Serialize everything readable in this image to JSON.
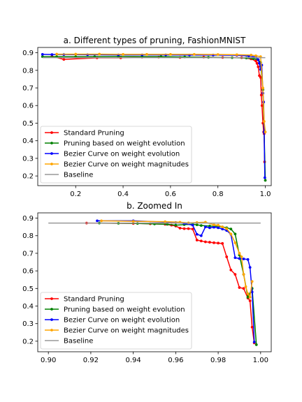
{
  "chart_data": [
    {
      "type": "line",
      "title": "a. Different types of pruning, FashionMNIST",
      "xlabel": "",
      "ylabel": "",
      "xlim": [
        0.04,
        1.025
      ],
      "ylim": [
        0.145,
        0.93
      ],
      "xticks": [
        0.2,
        0.4,
        0.6,
        0.8,
        1.0
      ],
      "xtick_labels": [
        "0.2",
        "0.4",
        "0.6",
        "0.8",
        "1.0"
      ],
      "yticks": [
        0.2,
        0.3,
        0.4,
        0.5,
        0.6,
        0.7,
        0.8,
        0.9
      ],
      "ytick_labels": [
        "0.2",
        "0.3",
        "0.4",
        "0.5",
        "0.6",
        "0.7",
        "0.8",
        "0.9"
      ],
      "legend_position": "lower-left",
      "grid": false,
      "series": [
        {
          "name": "Standard Pruning",
          "color": "#ff0000",
          "x": [
            0.1,
            0.15,
            0.29,
            0.39,
            0.48,
            0.55,
            0.64,
            0.74,
            0.82,
            0.9,
            0.94,
            0.96,
            0.965,
            0.97,
            0.975,
            0.98,
            0.983,
            0.986,
            0.99,
            0.993,
            0.995,
            0.997
          ],
          "y": [
            0.88,
            0.862,
            0.871,
            0.871,
            0.875,
            0.875,
            0.873,
            0.875,
            0.873,
            0.872,
            0.865,
            0.853,
            0.84,
            0.82,
            0.77,
            0.76,
            0.66,
            0.6,
            0.5,
            0.45,
            0.44,
            0.28
          ]
        },
        {
          "name": "Pruning based on weight evolution",
          "color": "#008000",
          "x": [
            0.06,
            0.12,
            0.2,
            0.28,
            0.38,
            0.48,
            0.56,
            0.66,
            0.76,
            0.86,
            0.92,
            0.95,
            0.97,
            0.98,
            0.99,
            0.995,
            1.0
          ],
          "y": [
            0.878,
            0.878,
            0.878,
            0.878,
            0.879,
            0.878,
            0.878,
            0.876,
            0.874,
            0.872,
            0.87,
            0.866,
            0.86,
            0.845,
            0.69,
            0.45,
            0.175
          ]
        },
        {
          "name": "Bezier Curve on weight evolution",
          "color": "#0000ff",
          "x": [
            0.06,
            0.1,
            0.15,
            0.25,
            0.38,
            0.48,
            0.58,
            0.68,
            0.78,
            0.88,
            0.93,
            0.96,
            0.97,
            0.975,
            0.98,
            0.985,
            0.99,
            0.993,
            0.995,
            0.998
          ],
          "y": [
            0.891,
            0.89,
            0.89,
            0.889,
            0.888,
            0.888,
            0.888,
            0.887,
            0.887,
            0.886,
            0.882,
            0.875,
            0.86,
            0.84,
            0.805,
            0.83,
            0.67,
            0.62,
            0.45,
            0.19
          ]
        },
        {
          "name": "Bezier Curve on weight magnitudes",
          "color": "#ffa500",
          "x": [
            0.12,
            0.2,
            0.3,
            0.4,
            0.5,
            0.6,
            0.7,
            0.8,
            0.88,
            0.94,
            0.96,
            0.98,
            0.99,
            0.995,
            1.0
          ],
          "y": [
            0.892,
            0.892,
            0.892,
            0.891,
            0.891,
            0.891,
            0.891,
            0.89,
            0.889,
            0.887,
            0.883,
            0.878,
            0.7,
            0.51,
            0.45
          ]
        },
        {
          "name": "Baseline",
          "color": "#999999",
          "style": "line-only",
          "x": [
            0.06,
            1.0
          ],
          "y": [
            0.872,
            0.872
          ]
        }
      ]
    },
    {
      "type": "line",
      "title": "b. Zoomed In",
      "xlabel": "",
      "ylabel": "",
      "xlim": [
        0.895,
        1.005
      ],
      "ylim": [
        0.14,
        0.93
      ],
      "xticks": [
        0.9,
        0.92,
        0.94,
        0.96,
        0.98,
        1.0
      ],
      "xtick_labels": [
        "0.90",
        "0.92",
        "0.94",
        "0.96",
        "0.98",
        "1.00"
      ],
      "yticks": [
        0.2,
        0.3,
        0.4,
        0.5,
        0.6,
        0.7,
        0.8,
        0.9
      ],
      "ytick_labels": [
        "0.2",
        "0.3",
        "0.4",
        "0.5",
        "0.6",
        "0.7",
        "0.8",
        "0.9"
      ],
      "legend_position": "lower-left",
      "grid": false,
      "series": [
        {
          "name": "Standard Pruning",
          "color": "#ff0000",
          "x": [
            0.918,
            0.94,
            0.948,
            0.955,
            0.958,
            0.96,
            0.962,
            0.964,
            0.966,
            0.968,
            0.97,
            0.972,
            0.974,
            0.976,
            0.978,
            0.98,
            0.982,
            0.984,
            0.986,
            0.988,
            0.99,
            0.992,
            0.994,
            0.995,
            0.996,
            0.997
          ],
          "y": [
            0.872,
            0.87,
            0.868,
            0.865,
            0.86,
            0.855,
            0.843,
            0.84,
            0.84,
            0.838,
            0.775,
            0.77,
            0.765,
            0.763,
            0.76,
            0.758,
            0.756,
            0.68,
            0.605,
            0.58,
            0.505,
            0.5,
            0.445,
            0.43,
            0.28,
            0.19
          ]
        },
        {
          "name": "Pruning based on weight evolution",
          "color": "#008000",
          "x": [
            0.924,
            0.933,
            0.942,
            0.95,
            0.956,
            0.96,
            0.964,
            0.968,
            0.97,
            0.972,
            0.976,
            0.98,
            0.982,
            0.984,
            0.986,
            0.988,
            0.99,
            0.992,
            0.994,
            0.996,
            0.998
          ],
          "y": [
            0.872,
            0.871,
            0.87,
            0.867,
            0.865,
            0.86,
            0.863,
            0.865,
            0.862,
            0.858,
            0.855,
            0.853,
            0.85,
            0.845,
            0.838,
            0.81,
            0.69,
            0.58,
            0.45,
            0.5,
            0.18
          ]
        },
        {
          "name": "Bezier Curve on weight evolution",
          "color": "#0000ff",
          "x": [
            0.923,
            0.94,
            0.96,
            0.964,
            0.968,
            0.97,
            0.972,
            0.974,
            0.976,
            0.978,
            0.98,
            0.982,
            0.984,
            0.986,
            0.988,
            0.99,
            0.992,
            0.994,
            0.995,
            0.996,
            0.997
          ],
          "y": [
            0.885,
            0.885,
            0.875,
            0.87,
            0.86,
            0.808,
            0.8,
            0.85,
            0.845,
            0.848,
            0.845,
            0.838,
            0.83,
            0.808,
            0.675,
            0.67,
            0.668,
            0.665,
            0.62,
            0.48,
            0.195
          ]
        },
        {
          "name": "Bezier Curve on weight magnitudes",
          "color": "#ffa500",
          "x": [
            0.925,
            0.94,
            0.955,
            0.962,
            0.966,
            0.97,
            0.974,
            0.978,
            0.98,
            0.982,
            0.984,
            0.986,
            0.988,
            0.99,
            0.991,
            0.992,
            0.993,
            0.994,
            0.995,
            0.996
          ],
          "y": [
            0.885,
            0.882,
            0.88,
            0.877,
            0.873,
            0.875,
            0.877,
            0.862,
            0.86,
            0.85,
            0.84,
            0.81,
            0.76,
            0.7,
            0.68,
            0.58,
            0.51,
            0.47,
            0.45,
            0.54
          ]
        },
        {
          "name": "Baseline",
          "color": "#999999",
          "style": "line-only",
          "x": [
            0.9,
            1.0
          ],
          "y": [
            0.872,
            0.872
          ]
        }
      ]
    }
  ]
}
